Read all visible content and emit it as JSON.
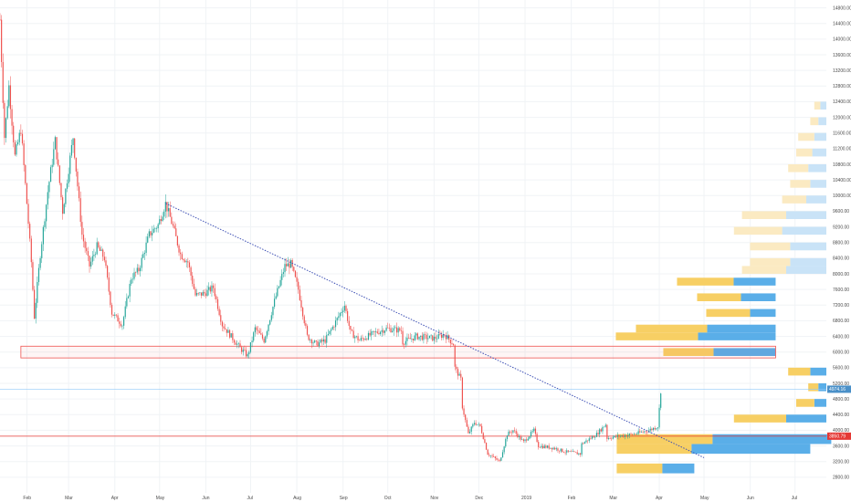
{
  "chart_data": {
    "type": "candlestick",
    "title": "",
    "xlabel": "",
    "ylabel": "",
    "ylim": [
      2400,
      15000
    ],
    "grid": true,
    "y_ticks": [
      2800,
      3200,
      3600,
      4000,
      4400,
      4800,
      5200,
      5600,
      6000,
      6400,
      6800,
      7200,
      7600,
      8000,
      8400,
      8800,
      9200,
      9600,
      10000,
      10400,
      10800,
      11200,
      11600,
      12000,
      12400,
      12800,
      13200,
      13600,
      14000,
      14400,
      14800
    ],
    "y_tick_labels": [
      "2800.00",
      "3200.00",
      "3600.00",
      "4000.00",
      "4400.00",
      "4800.00",
      "5200.00",
      "5600.00",
      "6000.00",
      "6400.00",
      "6800.00",
      "7200.00",
      "7600.00",
      "8000.00",
      "8400.00",
      "8800.00",
      "9200.00",
      "9600.00",
      "10000.00",
      "10400.00",
      "10800.00",
      "11200.00",
      "11600.00",
      "12000.00",
      "12400.00",
      "12800.00",
      "13200.00",
      "13600.00",
      "14000.00",
      "14400.00",
      "14800.00"
    ],
    "x_ticks": [
      {
        "label": "Feb",
        "date": "2018-02-01"
      },
      {
        "label": "Mar",
        "date": "2018-03-01"
      },
      {
        "label": "Apr",
        "date": "2018-04-01"
      },
      {
        "label": "May",
        "date": "2018-05-01"
      },
      {
        "label": "Jun",
        "date": "2018-06-01"
      },
      {
        "label": "Jul",
        "date": "2018-07-01"
      },
      {
        "label": "Aug",
        "date": "2018-08-01"
      },
      {
        "label": "Sep",
        "date": "2018-09-01"
      },
      {
        "label": "Oct",
        "date": "2018-10-01"
      },
      {
        "label": "Nov",
        "date": "2018-11-01"
      },
      {
        "label": "Dec",
        "date": "2018-12-01"
      },
      {
        "label": "2019",
        "date": "2019-01-01"
      },
      {
        "label": "Feb",
        "date": "2019-02-01"
      },
      {
        "label": "Mar",
        "date": "2019-03-01"
      },
      {
        "label": "Apr",
        "date": "2019-04-01"
      },
      {
        "label": "May",
        "date": "2019-05-01"
      },
      {
        "label": "Jun",
        "date": "2019-06-01"
      },
      {
        "label": "Jul",
        "date": "2019-07-01"
      }
    ],
    "x_range": [
      "2018-01-14",
      "2019-07-22"
    ],
    "price_path": [
      [
        "2018-01-14",
        14500
      ],
      [
        "2018-01-17",
        11500
      ],
      [
        "2018-01-20",
        12800
      ],
      [
        "2018-01-24",
        11000
      ],
      [
        "2018-01-28",
        11700
      ],
      [
        "2018-02-01",
        9800
      ],
      [
        "2018-02-04",
        8300
      ],
      [
        "2018-02-06",
        6900
      ],
      [
        "2018-02-10",
        8500
      ],
      [
        "2018-02-15",
        10100
      ],
      [
        "2018-02-20",
        11400
      ],
      [
        "2018-02-25",
        9600
      ],
      [
        "2018-03-04",
        11500
      ],
      [
        "2018-03-10",
        9000
      ],
      [
        "2018-03-15",
        8200
      ],
      [
        "2018-03-20",
        8700
      ],
      [
        "2018-03-25",
        8400
      ],
      [
        "2018-03-30",
        7000
      ],
      [
        "2018-04-06",
        6700
      ],
      [
        "2018-04-12",
        7900
      ],
      [
        "2018-04-17",
        8100
      ],
      [
        "2018-04-24",
        9000
      ],
      [
        "2018-04-30",
        9250
      ],
      [
        "2018-05-05",
        9800
      ],
      [
        "2018-05-10",
        9200
      ],
      [
        "2018-05-15",
        8500
      ],
      [
        "2018-05-20",
        8300
      ],
      [
        "2018-05-25",
        7450
      ],
      [
        "2018-05-31",
        7500
      ],
      [
        "2018-06-06",
        7650
      ],
      [
        "2018-06-12",
        6700
      ],
      [
        "2018-06-18",
        6400
      ],
      [
        "2018-06-24",
        6100
      ],
      [
        "2018-06-29",
        5900
      ],
      [
        "2018-07-04",
        6600
      ],
      [
        "2018-07-10",
        6300
      ],
      [
        "2018-07-17",
        7300
      ],
      [
        "2018-07-24",
        8200
      ],
      [
        "2018-07-28",
        8250
      ],
      [
        "2018-08-02",
        7600
      ],
      [
        "2018-08-08",
        6400
      ],
      [
        "2018-08-14",
        6200
      ],
      [
        "2018-08-20",
        6300
      ],
      [
        "2018-08-26",
        6700
      ],
      [
        "2018-09-02",
        7200
      ],
      [
        "2018-09-06",
        6500
      ],
      [
        "2018-09-12",
        6300
      ],
      [
        "2018-09-20",
        6450
      ],
      [
        "2018-09-30",
        6600
      ],
      [
        "2018-10-10",
        6550
      ],
      [
        "2018-10-11",
        6250
      ],
      [
        "2018-10-20",
        6400
      ],
      [
        "2018-11-01",
        6350
      ],
      [
        "2018-11-08",
        6450
      ],
      [
        "2018-11-14",
        6200
      ],
      [
        "2018-11-15",
        5600
      ],
      [
        "2018-11-19",
        5300
      ],
      [
        "2018-11-20",
        4600
      ],
      [
        "2018-11-24",
        3900
      ],
      [
        "2018-11-28",
        4200
      ],
      [
        "2018-12-02",
        4100
      ],
      [
        "2018-12-07",
        3400
      ],
      [
        "2018-12-15",
        3200
      ],
      [
        "2018-12-20",
        3900
      ],
      [
        "2018-12-24",
        4000
      ],
      [
        "2018-12-31",
        3700
      ],
      [
        "2019-01-07",
        4000
      ],
      [
        "2019-01-10",
        3600
      ],
      [
        "2019-01-20",
        3550
      ],
      [
        "2019-01-28",
        3450
      ],
      [
        "2019-02-07",
        3400
      ],
      [
        "2019-02-08",
        3650
      ],
      [
        "2019-02-18",
        3900
      ],
      [
        "2019-02-24",
        4150
      ],
      [
        "2019-02-25",
        3800
      ],
      [
        "2019-03-05",
        3850
      ],
      [
        "2019-03-15",
        3900
      ],
      [
        "2019-03-25",
        4000
      ],
      [
        "2019-03-31",
        4100
      ],
      [
        "2019-04-02",
        5000
      ]
    ],
    "downtrend_line": {
      "start": [
        "2018-05-05",
        9800
      ],
      "end": [
        "2019-05-01",
        3300
      ]
    },
    "support_zone": {
      "start": "2018-01-28",
      "end": "2019-06-18",
      "low": 5850,
      "high": 6150
    },
    "last_price_line": 3850,
    "upper_price_line": 5050,
    "price_badges": [
      "4974.16",
      "3850.79"
    ],
    "volume_profile_main": [
      {
        "price_low": 5900,
        "price_high": 6100,
        "up": 55,
        "down": 68
      },
      {
        "price_low": 6300,
        "price_high": 6500,
        "up": 90,
        "down": 85
      },
      {
        "price_low": 6500,
        "price_high": 6700,
        "up": 78,
        "down": 75
      },
      {
        "price_low": 6900,
        "price_high": 7100,
        "up": 48,
        "down": 28
      },
      {
        "price_low": 7300,
        "price_high": 7500,
        "up": 48,
        "down": 38
      },
      {
        "price_low": 7700,
        "price_high": 7900,
        "up": 62,
        "down": 46
      }
    ],
    "volume_profile_lower": [
      {
        "price_low": 2900,
        "price_high": 3150,
        "up": 50,
        "down": 35
      },
      {
        "price_low": 3400,
        "price_high": 3650,
        "up": 82,
        "down": 130
      },
      {
        "price_low": 3650,
        "price_high": 3900,
        "up": 105,
        "down": 130
      }
    ],
    "volume_profile_history": [
      {
        "price_low": 4200,
        "price_high": 4400,
        "up": 26,
        "down": 20
      },
      {
        "price_low": 4600,
        "price_high": 4800,
        "up": 9,
        "down": 6
      },
      {
        "price_low": 5000,
        "price_high": 5200,
        "up": 5,
        "down": 4
      },
      {
        "price_low": 5400,
        "price_high": 5600,
        "up": 11,
        "down": 8
      },
      {
        "price_low": 8000,
        "price_high": 8200,
        "up": 22,
        "down": 20
      },
      {
        "price_low": 8200,
        "price_high": 8400,
        "up": 20,
        "down": 18
      },
      {
        "price_low": 8600,
        "price_high": 8800,
        "up": 20,
        "down": 18
      },
      {
        "price_low": 9000,
        "price_high": 9200,
        "up": 24,
        "down": 22
      },
      {
        "price_low": 9400,
        "price_high": 9600,
        "up": 22,
        "down": 20
      },
      {
        "price_low": 9800,
        "price_high": 10000,
        "up": 12,
        "down": 10
      },
      {
        "price_low": 10200,
        "price_high": 10400,
        "up": 10,
        "down": 8
      },
      {
        "price_low": 10600,
        "price_high": 10800,
        "up": 10,
        "down": 9
      },
      {
        "price_low": 11000,
        "price_high": 11200,
        "up": 8,
        "down": 7
      },
      {
        "price_low": 11400,
        "price_high": 11600,
        "up": 8,
        "down": 6
      },
      {
        "price_low": 11800,
        "price_high": 12000,
        "up": 4,
        "down": 4
      },
      {
        "price_low": 12200,
        "price_high": 12400,
        "up": 3,
        "down": 3
      }
    ],
    "colors": {
      "up_candle": "#26a69a",
      "down_candle": "#ef5350",
      "trendline": "#3f51b5",
      "support_zone_border": "#ef5350",
      "last_price_line": "#e53935",
      "upper_price_line": "#90caf9",
      "profile_up": "#5aaee8",
      "profile_down": "#f7cf64",
      "profile_up_light": "#c9e3f7",
      "profile_down_light": "#fbeac2",
      "badge_upper": "#4a90c8",
      "badge_lower": "#e53935",
      "grid": "#f0f3f6"
    }
  }
}
